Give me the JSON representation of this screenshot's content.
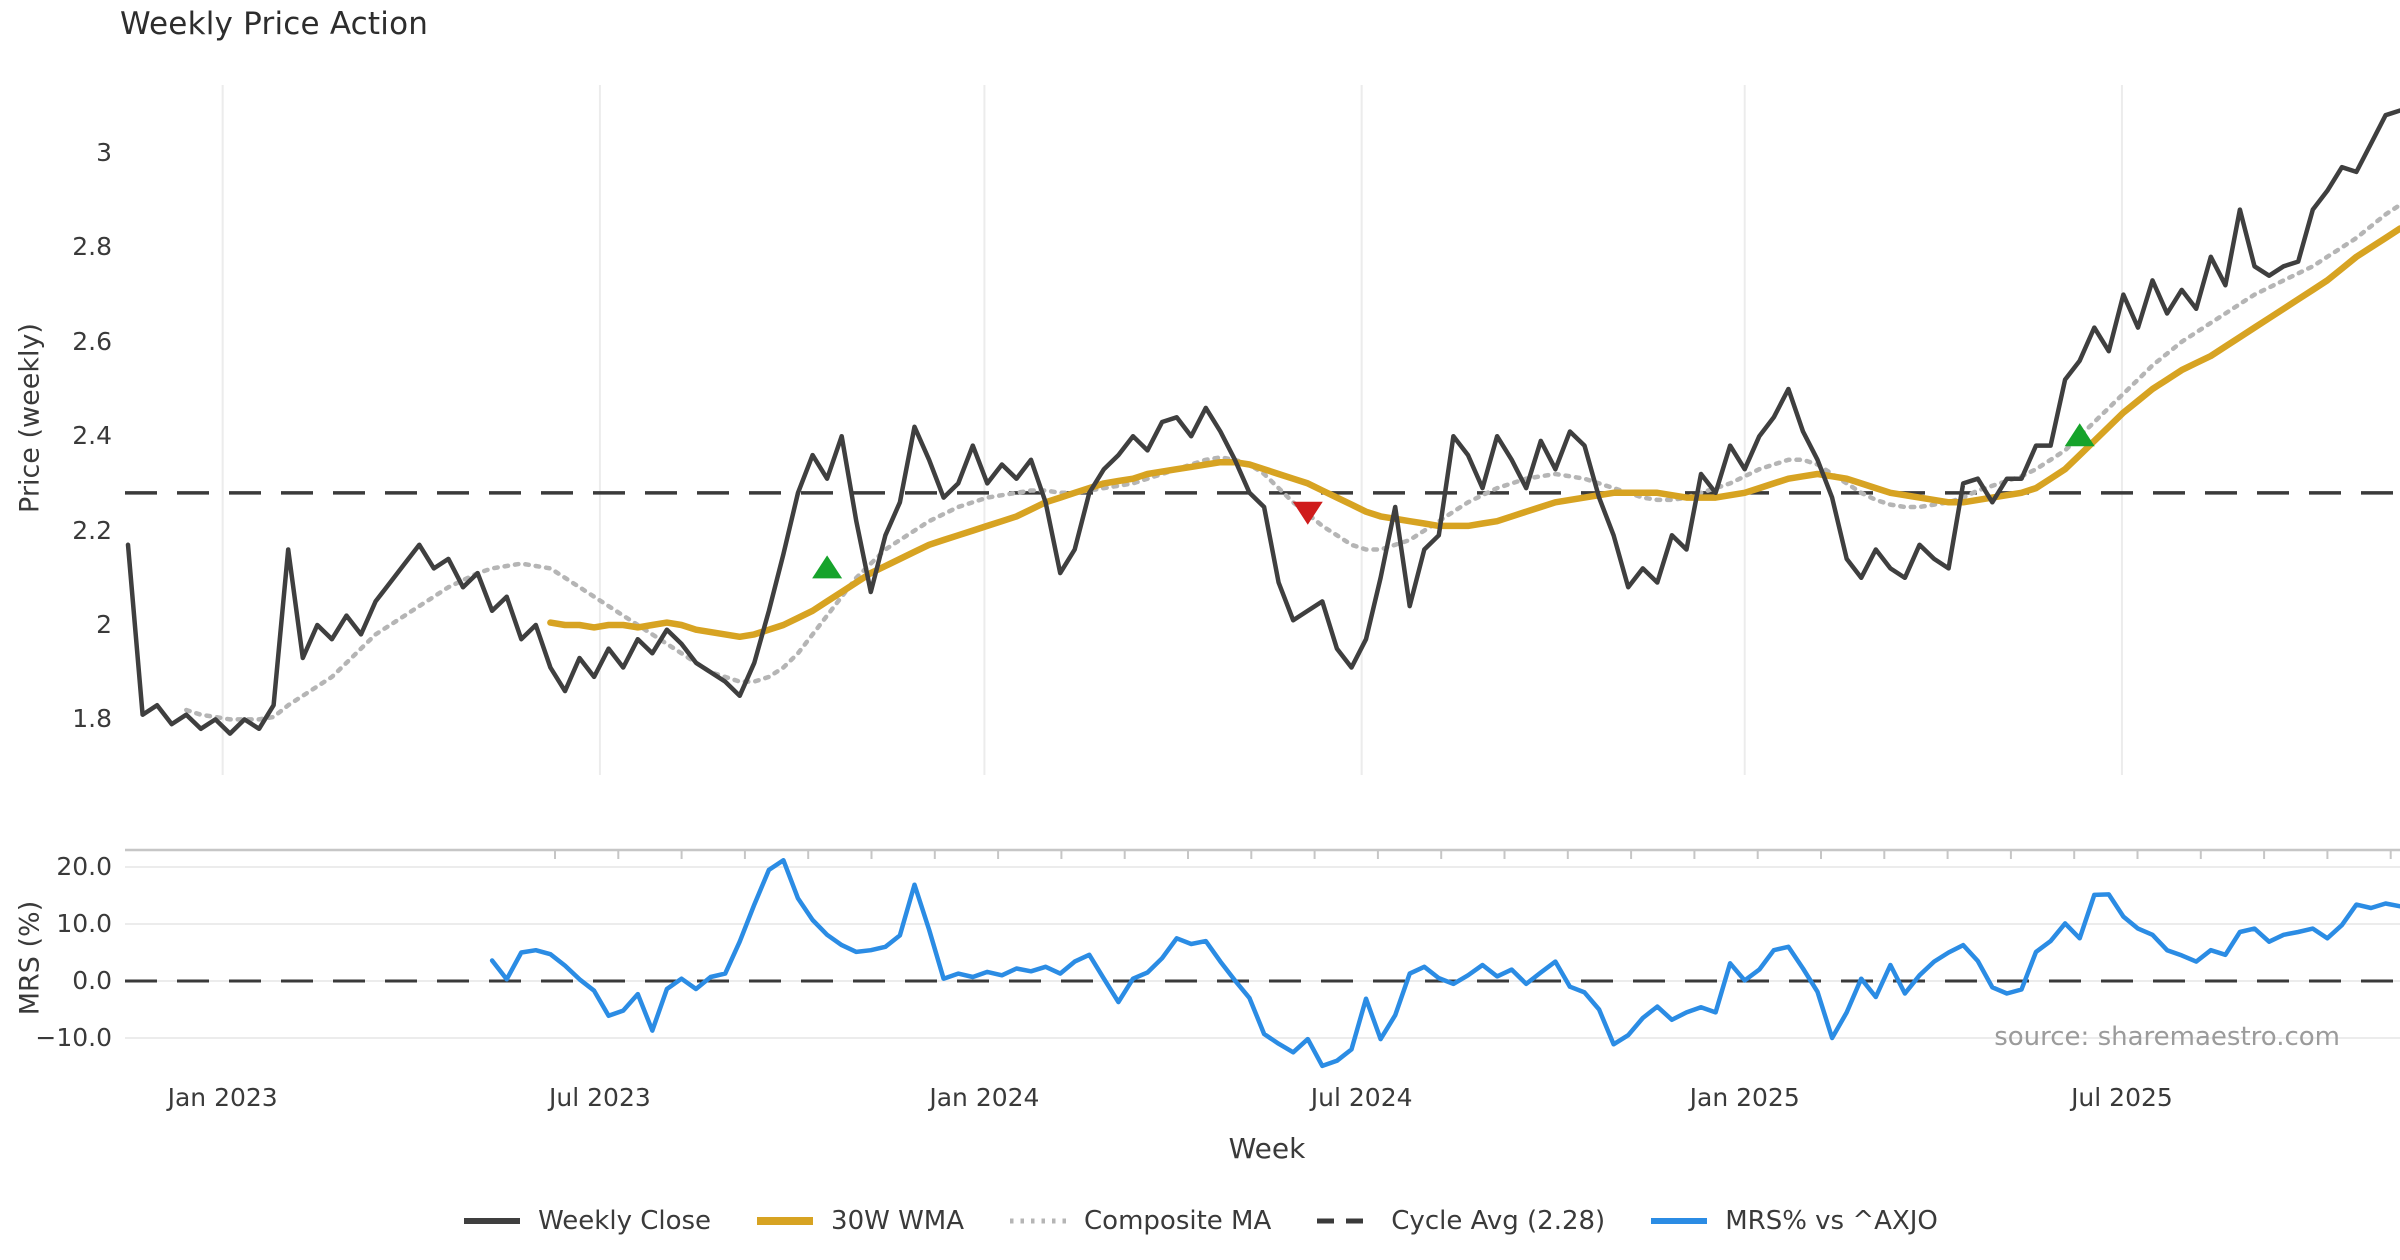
{
  "title": "Weekly Price Action",
  "source_text": "source: sharemaestro.com",
  "axes": {
    "price_label": "Price (weekly)",
    "mrs_label": "MRS (%)",
    "x_label": "Week"
  },
  "colors": {
    "weekly_close": "#3f3f3f",
    "wma": "#d7a322",
    "composite": "#b5b5b5",
    "cycle_avg": "#3a3a3a",
    "mrs": "#2b8ce4",
    "buy_marker": "#16a32b",
    "sell_marker": "#cf1c1c",
    "gridline": "#ececec",
    "panel_spine": "#c6c6c6",
    "tick_text": "#3a3a3a",
    "source_text": "#9b9b9b",
    "background": "#ffffff"
  },
  "legend": [
    {
      "label": "Weekly Close",
      "style": "solid",
      "color": "#3f3f3f"
    },
    {
      "label": "30W WMA",
      "style": "solid-thick",
      "color": "#d7a322"
    },
    {
      "label": "Composite MA",
      "style": "dotted",
      "color": "#b5b5b5"
    },
    {
      "label": "Cycle Avg (2.28)",
      "style": "dashed",
      "color": "#3a3a3a"
    },
    {
      "label": "MRS% vs ^AXJO",
      "style": "solid",
      "color": "#2b8ce4"
    }
  ],
  "chart_data": [
    {
      "type": "line",
      "panel": "price",
      "title": "Weekly Price Action",
      "ylabel": "Price (weekly)",
      "xlabel": "Week",
      "grid": "vertical-only",
      "legend_position": "bottom-center",
      "ylim": [
        1.69,
        3.19
      ],
      "yticks": [
        1.8,
        2,
        2.2,
        2.4,
        2.6,
        2.8,
        3
      ],
      "ytick_labels": [
        "1.8",
        "2",
        "2.2",
        "2.4",
        "2.6",
        "2.8",
        "3"
      ],
      "x_axis": {
        "unit": "weekly index from first data point (~mid-Nov 2022)",
        "tick_labels": [
          "Jan 2023",
          "Jul 2023",
          "Jan 2024",
          "Jul 2024",
          "Jan 2025",
          "Jul 2025"
        ],
        "tick_weeks": [
          6.5,
          32.4,
          58.8,
          84.7,
          111.0,
          136.9
        ],
        "total_weeks": 157
      },
      "cycle_avg_value": 2.28,
      "series": [
        {
          "name": "Weekly Close",
          "color_key": "weekly_close",
          "start_week": 0,
          "values": [
            2.17,
            1.81,
            1.83,
            1.79,
            1.81,
            1.78,
            1.8,
            1.77,
            1.8,
            1.78,
            1.83,
            2.16,
            1.93,
            2.0,
            1.97,
            2.02,
            1.98,
            2.05,
            2.09,
            2.13,
            2.17,
            2.12,
            2.14,
            2.08,
            2.11,
            2.03,
            2.06,
            1.97,
            2.0,
            1.91,
            1.86,
            1.93,
            1.89,
            1.95,
            1.91,
            1.97,
            1.94,
            1.99,
            1.96,
            1.92,
            1.9,
            1.88,
            1.85,
            1.92,
            2.03,
            2.15,
            2.28,
            2.36,
            2.31,
            2.4,
            2.22,
            2.07,
            2.19,
            2.26,
            2.42,
            2.35,
            2.27,
            2.3,
            2.38,
            2.3,
            2.34,
            2.31,
            2.35,
            2.26,
            2.11,
            2.16,
            2.28,
            2.33,
            2.36,
            2.4,
            2.37,
            2.43,
            2.44,
            2.4,
            2.46,
            2.41,
            2.35,
            2.28,
            2.25,
            2.09,
            2.01,
            2.03,
            2.05,
            1.95,
            1.91,
            1.97,
            2.1,
            2.25,
            2.04,
            2.16,
            2.19,
            2.4,
            2.36,
            2.29,
            2.4,
            2.35,
            2.29,
            2.39,
            2.33,
            2.41,
            2.38,
            2.27,
            2.19,
            2.08,
            2.12,
            2.09,
            2.19,
            2.16,
            2.32,
            2.28,
            2.38,
            2.33,
            2.4,
            2.44,
            2.5,
            2.41,
            2.35,
            2.27,
            2.14,
            2.1,
            2.16,
            2.12,
            2.1,
            2.17,
            2.14,
            2.12,
            2.3,
            2.31,
            2.26,
            2.31,
            2.31,
            2.38,
            2.38,
            2.52,
            2.56,
            2.63,
            2.58,
            2.7,
            2.63,
            2.73,
            2.66,
            2.71,
            2.67,
            2.78,
            2.72,
            2.88,
            2.76,
            2.74,
            2.76,
            2.77,
            2.88,
            2.92,
            2.97,
            2.96,
            3.02,
            3.08,
            3.09
          ]
        },
        {
          "name": "30W WMA",
          "color_key": "wma",
          "start_week": 29,
          "values": [
            2.005,
            2.0,
            2.0,
            1.995,
            2.0,
            2.0,
            1.995,
            2.0,
            2.005,
            2.0,
            1.99,
            1.985,
            1.98,
            1.975,
            1.98,
            1.99,
            2.0,
            2.015,
            2.03,
            2.05,
            2.07,
            2.09,
            2.11,
            2.125,
            2.14,
            2.155,
            2.17,
            2.18,
            2.19,
            2.2,
            2.21,
            2.22,
            2.23,
            2.245,
            2.26,
            2.27,
            2.28,
            2.29,
            2.3,
            2.305,
            2.31,
            2.32,
            2.325,
            2.33,
            2.335,
            2.34,
            2.345,
            2.345,
            2.34,
            2.33,
            2.32,
            2.31,
            2.3,
            2.285,
            2.27,
            2.255,
            2.24,
            2.23,
            2.225,
            2.22,
            2.215,
            2.21,
            2.21,
            2.21,
            2.215,
            2.22,
            2.23,
            2.24,
            2.25,
            2.26,
            2.265,
            2.27,
            2.275,
            2.28,
            2.28,
            2.28,
            2.28,
            2.275,
            2.27,
            2.27,
            2.27,
            2.275,
            2.28,
            2.29,
            2.3,
            2.31,
            2.315,
            2.32,
            2.315,
            2.31,
            2.3,
            2.29,
            2.28,
            2.275,
            2.27,
            2.265,
            2.26,
            2.26,
            2.265,
            2.27,
            2.275,
            2.28,
            2.29,
            2.31,
            2.33,
            2.36,
            2.39,
            2.42,
            2.45,
            2.475,
            2.5,
            2.52,
            2.54,
            2.555,
            2.57,
            2.59,
            2.61,
            2.63,
            2.65,
            2.67,
            2.69,
            2.71,
            2.73,
            2.755,
            2.78,
            2.8,
            2.82,
            2.84
          ]
        },
        {
          "name": "Composite MA",
          "color_key": "composite",
          "start_week": 4,
          "values": [
            1.82,
            1.81,
            1.805,
            1.8,
            1.8,
            1.8,
            1.805,
            1.83,
            1.85,
            1.87,
            1.89,
            1.92,
            1.95,
            1.98,
            2.0,
            2.02,
            2.04,
            2.06,
            2.08,
            2.095,
            2.11,
            2.12,
            2.125,
            2.13,
            2.125,
            2.12,
            2.1,
            2.08,
            2.06,
            2.04,
            2.02,
            2.0,
            1.98,
            1.96,
            1.94,
            1.92,
            1.9,
            1.89,
            1.88,
            1.88,
            1.89,
            1.91,
            1.94,
            1.98,
            2.02,
            2.06,
            2.1,
            2.13,
            2.16,
            2.18,
            2.2,
            2.22,
            2.235,
            2.25,
            2.26,
            2.27,
            2.275,
            2.28,
            2.285,
            2.285,
            2.28,
            2.28,
            2.285,
            2.29,
            2.295,
            2.3,
            2.31,
            2.32,
            2.33,
            2.34,
            2.35,
            2.355,
            2.35,
            2.34,
            2.32,
            2.29,
            2.26,
            2.235,
            2.21,
            2.19,
            2.17,
            2.16,
            2.16,
            2.17,
            2.18,
            2.2,
            2.22,
            2.24,
            2.26,
            2.275,
            2.29,
            2.3,
            2.31,
            2.315,
            2.32,
            2.315,
            2.31,
            2.3,
            2.29,
            2.28,
            2.27,
            2.265,
            2.265,
            2.27,
            2.28,
            2.29,
            2.3,
            2.315,
            2.33,
            2.34,
            2.35,
            2.35,
            2.34,
            2.32,
            2.3,
            2.28,
            2.265,
            2.255,
            2.25,
            2.25,
            2.255,
            2.26,
            2.27,
            2.285,
            2.295,
            2.305,
            2.315,
            2.33,
            2.35,
            2.37,
            2.4,
            2.43,
            2.46,
            2.49,
            2.52,
            2.55,
            2.575,
            2.6,
            2.62,
            2.64,
            2.66,
            2.68,
            2.7,
            2.715,
            2.73,
            2.745,
            2.76,
            2.78,
            2.8,
            2.82,
            2.845,
            2.87,
            2.89
          ]
        }
      ],
      "markers": [
        {
          "signal": "buy",
          "shape": "triangle-up",
          "week": 48,
          "price": 2.12
        },
        {
          "signal": "sell",
          "shape": "triangle-down",
          "week": 81,
          "price": 2.24
        },
        {
          "signal": "buy",
          "shape": "triangle-up",
          "week": 134,
          "price": 2.4
        }
      ]
    },
    {
      "type": "line",
      "panel": "mrs",
      "ylabel": "MRS (%)",
      "grid": "horizontal-only",
      "ylim": [
        -16,
        23
      ],
      "yticks": [
        -10,
        0,
        10,
        20
      ],
      "ytick_labels": [
        "−10.0",
        "0.0",
        "10.0",
        "20.0"
      ],
      "zero_line": 0,
      "series": [
        {
          "name": "MRS% vs ^AXJO",
          "color_key": "mrs",
          "start_week": 25,
          "values": [
            3.6,
            0.3,
            5.0,
            5.4,
            4.7,
            2.7,
            0.3,
            -1.7,
            -6.1,
            -5.2,
            -2.3,
            -8.7,
            -1.4,
            0.4,
            -1.4,
            0.7,
            1.3,
            6.9,
            13.4,
            19.5,
            21.2,
            14.5,
            10.7,
            8.1,
            6.3,
            5.1,
            5.4,
            6.0,
            8.0,
            16.9,
            9.0,
            0.4,
            1.3,
            0.7,
            1.6,
            1.0,
            2.2,
            1.7,
            2.5,
            1.3,
            3.4,
            4.6,
            0.4,
            -3.7,
            0.4,
            1.5,
            4.0,
            7.5,
            6.5,
            7.0,
            3.4,
            0.1,
            -3.0,
            -9.3,
            -11.0,
            -12.5,
            -10.2,
            -14.9,
            -14.0,
            -12.0,
            -3.1,
            -10.2,
            -6.0,
            1.3,
            2.5,
            0.5,
            -0.5,
            1.0,
            2.8,
            0.8,
            2.0,
            -0.5,
            1.5,
            3.4,
            -1.0,
            -2.0,
            -5.0,
            -11.1,
            -9.5,
            -6.5,
            -4.5,
            -6.8,
            -5.5,
            -4.6,
            -5.5,
            3.1,
            0.1,
            2.0,
            5.4,
            6.0,
            2.2,
            -1.9,
            -10.0,
            -5.5,
            0.4,
            -2.8,
            2.8,
            -2.2,
            1.0,
            3.4,
            5.0,
            6.3,
            3.5,
            -1.1,
            -2.2,
            -1.5,
            5.1,
            7.0,
            10.1,
            7.5,
            15.1,
            15.2,
            11.3,
            9.2,
            8.1,
            5.4,
            4.5,
            3.4,
            5.4,
            4.6,
            8.6,
            9.2,
            6.9,
            8.1,
            8.6,
            9.2,
            7.5,
            9.8,
            13.4,
            12.8,
            13.6,
            13.1
          ]
        }
      ]
    }
  ]
}
